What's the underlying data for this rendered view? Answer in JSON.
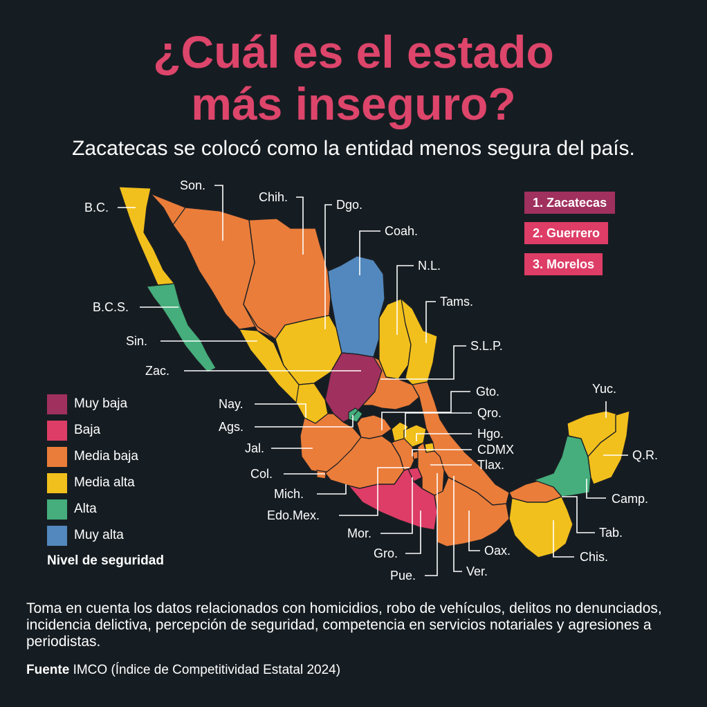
{
  "title": {
    "line1": "¿Cuál es el estado",
    "line2": "más inseguro?"
  },
  "subtitle": "Zacatecas se colocó como la entidad menos segura del país.",
  "ranking": [
    "1. Zacatecas",
    "2. Guerrero",
    "3. Morelos"
  ],
  "legend": {
    "title": "Nivel de seguridad",
    "items": [
      {
        "label": "Muy baja",
        "color": "#a0305d"
      },
      {
        "label": "Baja",
        "color": "#dd3d66"
      },
      {
        "label": "Media baja",
        "color": "#ea7d3a"
      },
      {
        "label": "Media alta",
        "color": "#f2c01c"
      },
      {
        "label": "Alta",
        "color": "#45ae7c"
      },
      {
        "label": "Muy alta",
        "color": "#5288bd"
      }
    ]
  },
  "states": [
    {
      "label": "B.C.",
      "level": "Media alta"
    },
    {
      "label": "Son.",
      "level": "Media baja"
    },
    {
      "label": "Chih.",
      "level": "Media baja"
    },
    {
      "label": "Dgo.",
      "level": "Media alta"
    },
    {
      "label": "Coah.",
      "level": "Muy alta"
    },
    {
      "label": "N.L.",
      "level": "Media alta"
    },
    {
      "label": "Tams.",
      "level": "Media alta"
    },
    {
      "label": "B.C.S.",
      "level": "Alta"
    },
    {
      "label": "Sin.",
      "level": "Media alta"
    },
    {
      "label": "Zac.",
      "level": "Muy baja"
    },
    {
      "label": "S.L.P.",
      "level": "Media baja"
    },
    {
      "label": "Nay.",
      "level": "Media alta"
    },
    {
      "label": "Ags.",
      "level": "Alta"
    },
    {
      "label": "Gto.",
      "level": "Media baja"
    },
    {
      "label": "Qro.",
      "level": "Media alta"
    },
    {
      "label": "Hgo.",
      "level": "Media alta"
    },
    {
      "label": "Jal.",
      "level": "Media baja"
    },
    {
      "label": "CDMX",
      "level": "Media baja"
    },
    {
      "label": "Tlax.",
      "level": "Media alta"
    },
    {
      "label": "Col.",
      "level": "Media baja"
    },
    {
      "label": "Mich.",
      "level": "Media baja"
    },
    {
      "label": "Edo.Mex.",
      "level": "Media baja"
    },
    {
      "label": "Mor.",
      "level": "Baja"
    },
    {
      "label": "Gro.",
      "level": "Baja"
    },
    {
      "label": "Pue.",
      "level": "Media baja"
    },
    {
      "label": "Ver.",
      "level": "Media baja"
    },
    {
      "label": "Oax.",
      "level": "Media baja"
    },
    {
      "label": "Yuc.",
      "level": "Media alta"
    },
    {
      "label": "Q.R.",
      "level": "Media alta"
    },
    {
      "label": "Camp.",
      "level": "Alta"
    },
    {
      "label": "Tab.",
      "level": "Media baja"
    },
    {
      "label": "Chis.",
      "level": "Media alta"
    }
  ],
  "note": "Toma en cuenta los datos relacionados con homicidios, robo de vehículos, delitos no denunciados, incidencia delictiva, percepción de seguridad, competencia en servicios notariales y agresiones a periodistas.",
  "source": {
    "label": "Fuente",
    "text": "IMCO (Índice de Competitividad Estatal 2024)"
  }
}
